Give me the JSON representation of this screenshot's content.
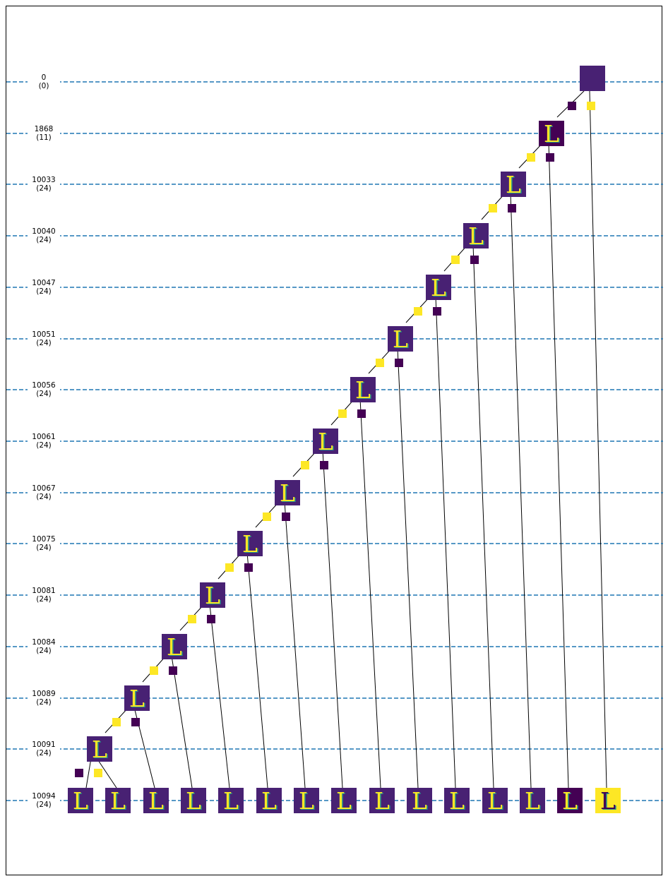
{
  "levels": [
    {
      "value": "0",
      "count": "(0)"
    },
    {
      "value": "1868",
      "count": "(11)"
    },
    {
      "value": "10033",
      "count": "(24)"
    },
    {
      "value": "10040",
      "count": "(24)"
    },
    {
      "value": "10047",
      "count": "(24)"
    },
    {
      "value": "10051",
      "count": "(24)"
    },
    {
      "value": "10056",
      "count": "(24)"
    },
    {
      "value": "10061",
      "count": "(24)"
    },
    {
      "value": "10067",
      "count": "(24)"
    },
    {
      "value": "10075",
      "count": "(24)"
    },
    {
      "value": "10081",
      "count": "(24)"
    },
    {
      "value": "10084",
      "count": "(24)"
    },
    {
      "value": "10089",
      "count": "(24)"
    },
    {
      "value": "10091",
      "count": "(24)"
    },
    {
      "value": "10094",
      "count": "(24)"
    }
  ],
  "glyph": "L",
  "colors": {
    "line": "#1f77b4",
    "edge": "#000000",
    "yellow": "#fde725",
    "purple_bg": "#482173",
    "dark_purple": "#440154",
    "teal": "#21918c"
  },
  "tree": {
    "root": {
      "style": "blank-yellow"
    },
    "internal_styles": [
      "dark",
      "normal",
      "normal",
      "normal",
      "normal",
      "normal",
      "normal",
      "normal",
      "normal",
      "normal",
      "normal",
      "normal",
      "normal"
    ],
    "leaf_styles": [
      "normal",
      "normal",
      "normal",
      "normal",
      "normal",
      "normal",
      "normal",
      "normal",
      "normal",
      "normal",
      "normal",
      "normal",
      "normal",
      "dark",
      "inverted"
    ],
    "left_marker_colors": [
      "purple",
      "yellow",
      "yellow",
      "yellow",
      "yellow",
      "yellow",
      "yellow",
      "yellow",
      "yellow",
      "yellow",
      "yellow",
      "yellow",
      "yellow",
      "purple"
    ],
    "right_marker_colors": [
      "yellow",
      "purple",
      "purple",
      "purple",
      "purple",
      "purple",
      "purple",
      "purple",
      "purple",
      "purple",
      "purple",
      "purple",
      "purple",
      "yellow"
    ]
  }
}
